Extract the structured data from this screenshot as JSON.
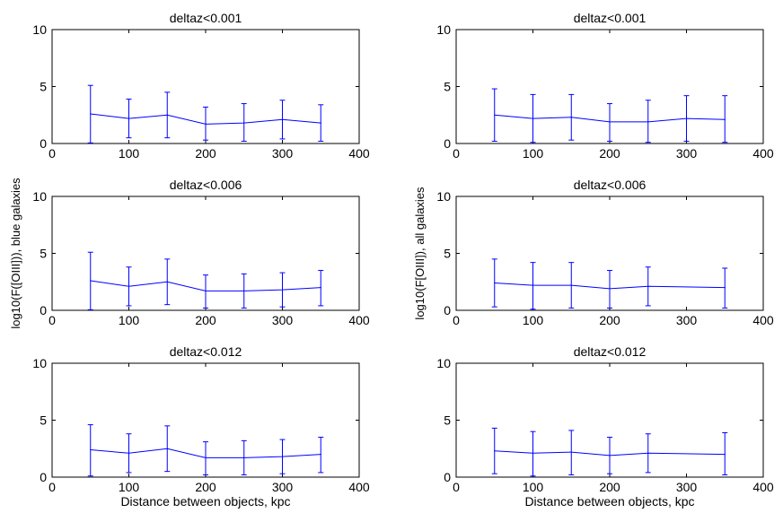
{
  "chart_data": [
    {
      "type": "line",
      "title": "deltaz<0.001",
      "xlabel": "",
      "ylabel": "",
      "xlim": [
        0,
        400
      ],
      "ylim": [
        0,
        10
      ],
      "xticks": [
        0,
        100,
        200,
        300,
        400
      ],
      "yticks": [
        0,
        5,
        10
      ],
      "series": [
        {
          "name": "blue galaxies",
          "color": "#0000ff",
          "x": [
            50,
            100,
            150,
            200,
            250,
            300,
            350
          ],
          "y": [
            2.6,
            2.2,
            2.5,
            1.7,
            1.8,
            2.1,
            1.8
          ],
          "err_low": [
            0.05,
            0.5,
            0.5,
            0.3,
            0.2,
            0.4,
            0.2
          ],
          "err_high": [
            5.1,
            3.9,
            4.5,
            3.2,
            3.5,
            3.8,
            3.4
          ]
        }
      ]
    },
    {
      "type": "line",
      "title": "deltaz<0.001",
      "xlabel": "",
      "ylabel": "",
      "xlim": [
        0,
        400
      ],
      "ylim": [
        0,
        10
      ],
      "xticks": [
        0,
        100,
        200,
        300,
        400
      ],
      "yticks": [
        0,
        5,
        10
      ],
      "series": [
        {
          "name": "all galaxies",
          "color": "#0000ff",
          "x": [
            50,
            100,
            150,
            200,
            250,
            300,
            350
          ],
          "y": [
            2.5,
            2.2,
            2.3,
            1.9,
            1.9,
            2.2,
            2.1
          ],
          "err_low": [
            0.2,
            0.1,
            0.3,
            0.2,
            0.1,
            0.2,
            0.1
          ],
          "err_high": [
            4.8,
            4.3,
            4.3,
            3.5,
            3.8,
            4.2,
            4.2
          ]
        }
      ]
    },
    {
      "type": "line",
      "title": "deltaz<0.006",
      "xlabel": "",
      "ylabel": "log10(F([OIII])), blue galaxies",
      "xlim": [
        0,
        400
      ],
      "ylim": [
        0,
        10
      ],
      "xticks": [
        0,
        100,
        200,
        300,
        400
      ],
      "yticks": [
        0,
        5,
        10
      ],
      "series": [
        {
          "name": "blue galaxies",
          "color": "#0000ff",
          "x": [
            50,
            100,
            150,
            200,
            250,
            300,
            350
          ],
          "y": [
            2.6,
            2.1,
            2.5,
            1.7,
            1.7,
            1.8,
            2.0
          ],
          "err_low": [
            0.05,
            0.4,
            0.5,
            0.2,
            0.2,
            0.3,
            0.4
          ],
          "err_high": [
            5.1,
            3.8,
            4.5,
            3.1,
            3.2,
            3.3,
            3.5
          ]
        }
      ]
    },
    {
      "type": "line",
      "title": "deltaz<0.006",
      "xlabel": "",
      "ylabel": "log10(F[OIII]), all galaxies",
      "xlim": [
        0,
        400
      ],
      "ylim": [
        0,
        10
      ],
      "xticks": [
        0,
        100,
        200,
        300,
        400
      ],
      "yticks": [
        0,
        5,
        10
      ],
      "series": [
        {
          "name": "all galaxies",
          "color": "#0000ff",
          "x": [
            50,
            100,
            150,
            200,
            250,
            350
          ],
          "y": [
            2.4,
            2.2,
            2.2,
            1.9,
            2.1,
            2.0
          ],
          "err_low": [
            0.3,
            0.1,
            0.2,
            0.2,
            0.4,
            0.2
          ],
          "err_high": [
            4.5,
            4.2,
            4.2,
            3.5,
            3.8,
            3.7
          ]
        }
      ]
    },
    {
      "type": "line",
      "title": "deltaz<0.012",
      "xlabel": "Distance between objects, kpc",
      "ylabel": "",
      "xlim": [
        0,
        400
      ],
      "ylim": [
        0,
        10
      ],
      "xticks": [
        0,
        100,
        200,
        300,
        400
      ],
      "yticks": [
        0,
        5,
        10
      ],
      "series": [
        {
          "name": "blue galaxies",
          "color": "#0000ff",
          "x": [
            50,
            100,
            150,
            200,
            250,
            300,
            350
          ],
          "y": [
            2.4,
            2.1,
            2.5,
            1.7,
            1.7,
            1.8,
            2.0
          ],
          "err_low": [
            0.1,
            0.4,
            0.5,
            0.2,
            0.2,
            0.3,
            0.4
          ],
          "err_high": [
            4.6,
            3.8,
            4.5,
            3.1,
            3.2,
            3.3,
            3.5
          ]
        }
      ]
    },
    {
      "type": "line",
      "title": "deltaz<0.012",
      "xlabel": "Distance between objects, kpc",
      "ylabel": "",
      "xlim": [
        0,
        400
      ],
      "ylim": [
        0,
        10
      ],
      "xticks": [
        0,
        100,
        200,
        300,
        400
      ],
      "yticks": [
        0,
        5,
        10
      ],
      "series": [
        {
          "name": "all galaxies",
          "color": "#0000ff",
          "x": [
            50,
            100,
            150,
            200,
            250,
            350
          ],
          "y": [
            2.3,
            2.1,
            2.2,
            1.9,
            2.1,
            2.0
          ],
          "err_low": [
            0.3,
            0.1,
            0.2,
            0.3,
            0.4,
            0.2
          ],
          "err_high": [
            4.3,
            4.0,
            4.1,
            3.5,
            3.8,
            3.9
          ]
        }
      ]
    }
  ]
}
